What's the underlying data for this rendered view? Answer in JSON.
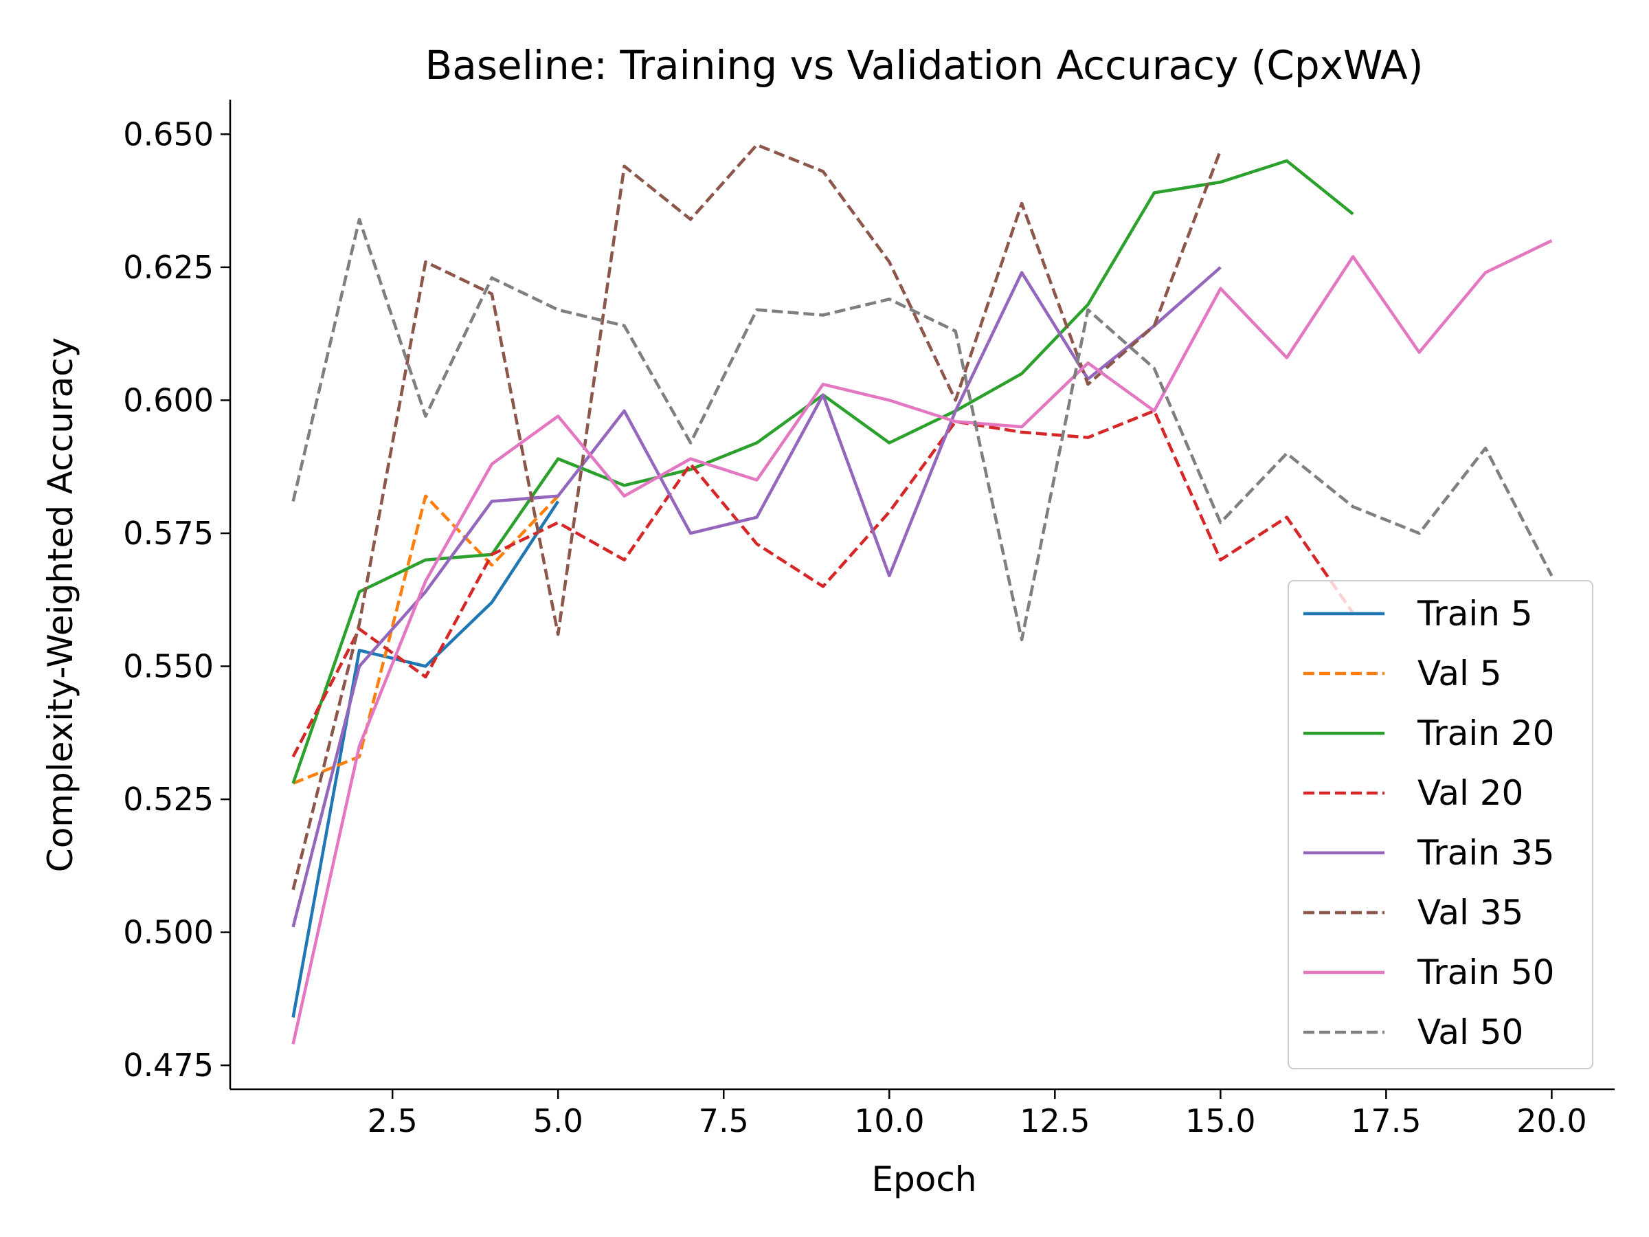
{
  "chart_data": {
    "type": "line",
    "title": "Baseline: Training vs Validation Accuracy (CpxWA)",
    "xlabel": "Epoch",
    "ylabel": "Complexity-Weighted Accuracy",
    "xlim": [
      0.05,
      20.95
    ],
    "ylim": [
      0.4705,
      0.6565
    ],
    "xticks": [
      2.5,
      5.0,
      7.5,
      10.0,
      12.5,
      15.0,
      17.5,
      20.0
    ],
    "xtick_labels": [
      "2.5",
      "5.0",
      "7.5",
      "10.0",
      "12.5",
      "15.0",
      "17.5",
      "20.0"
    ],
    "yticks": [
      0.475,
      0.5,
      0.525,
      0.55,
      0.575,
      0.6,
      0.625,
      0.65
    ],
    "ytick_labels": [
      "0.475",
      "0.500",
      "0.525",
      "0.550",
      "0.575",
      "0.600",
      "0.625",
      "0.650"
    ],
    "grid": false,
    "legend_position": "lower-right",
    "series": [
      {
        "name": "Train 5",
        "color": "#1f77b4",
        "dashed": false,
        "x": [
          1,
          2,
          3,
          4,
          5
        ],
        "y": [
          0.484,
          0.553,
          0.55,
          0.562,
          0.581
        ]
      },
      {
        "name": "Val 5",
        "color": "#ff7f0e",
        "dashed": true,
        "x": [
          1,
          2,
          3,
          4,
          5
        ],
        "y": [
          0.528,
          0.533,
          0.582,
          0.569,
          0.582
        ]
      },
      {
        "name": "Train 20",
        "color": "#2ca02c",
        "dashed": false,
        "x": [
          1,
          2,
          3,
          4,
          5,
          6,
          7,
          8,
          9,
          10,
          11,
          12,
          13,
          14,
          15,
          16,
          17
        ],
        "y": [
          0.528,
          0.564,
          0.57,
          0.571,
          0.589,
          0.584,
          0.587,
          0.592,
          0.601,
          0.592,
          0.598,
          0.605,
          0.618,
          0.639,
          0.641,
          0.645,
          0.635
        ]
      },
      {
        "name": "Val 20",
        "color": "#d62728",
        "dashed": true,
        "x": [
          1,
          2,
          3,
          4,
          5,
          6,
          7,
          8,
          9,
          10,
          11,
          12,
          13,
          14,
          15,
          16,
          17
        ],
        "y": [
          0.533,
          0.557,
          0.548,
          0.571,
          0.577,
          0.57,
          0.588,
          0.573,
          0.565,
          0.579,
          0.596,
          0.594,
          0.593,
          0.598,
          0.57,
          0.578,
          0.56
        ]
      },
      {
        "name": "Train 35",
        "color": "#9467bd",
        "dashed": false,
        "x": [
          1,
          2,
          3,
          4,
          5,
          6,
          7,
          8,
          9,
          10,
          11,
          12,
          13,
          14,
          15
        ],
        "y": [
          0.501,
          0.55,
          0.564,
          0.581,
          0.582,
          0.598,
          0.575,
          0.578,
          0.601,
          0.567,
          0.598,
          0.624,
          0.604,
          0.614,
          0.625
        ]
      },
      {
        "name": "Val 35",
        "color": "#8c564b",
        "dashed": true,
        "x": [
          1,
          2,
          3,
          4,
          5,
          6,
          7,
          8,
          9,
          10,
          11,
          12,
          13,
          14,
          15
        ],
        "y": [
          0.508,
          0.558,
          0.626,
          0.62,
          0.556,
          0.644,
          0.634,
          0.648,
          0.643,
          0.626,
          0.6,
          0.637,
          0.603,
          0.614,
          0.647
        ]
      },
      {
        "name": "Train 50",
        "color": "#e377c2",
        "dashed": false,
        "x": [
          1,
          2,
          3,
          4,
          5,
          6,
          7,
          8,
          9,
          10,
          11,
          12,
          13,
          14,
          15,
          16,
          17,
          18,
          19,
          20
        ],
        "y": [
          0.479,
          0.535,
          0.566,
          0.588,
          0.597,
          0.582,
          0.589,
          0.585,
          0.603,
          0.6,
          0.596,
          0.595,
          0.607,
          0.598,
          0.621,
          0.608,
          0.627,
          0.609,
          0.624,
          0.63
        ]
      },
      {
        "name": "Val 50",
        "color": "#7f7f7f",
        "dashed": true,
        "x": [
          1,
          2,
          3,
          4,
          5,
          6,
          7,
          8,
          9,
          10,
          11,
          12,
          13,
          14,
          15,
          16,
          17,
          18,
          19,
          20
        ],
        "y": [
          0.581,
          0.634,
          0.597,
          0.623,
          0.617,
          0.614,
          0.592,
          0.617,
          0.616,
          0.619,
          0.613,
          0.555,
          0.617,
          0.606,
          0.577,
          0.59,
          0.58,
          0.575,
          0.591,
          0.567
        ]
      }
    ]
  }
}
